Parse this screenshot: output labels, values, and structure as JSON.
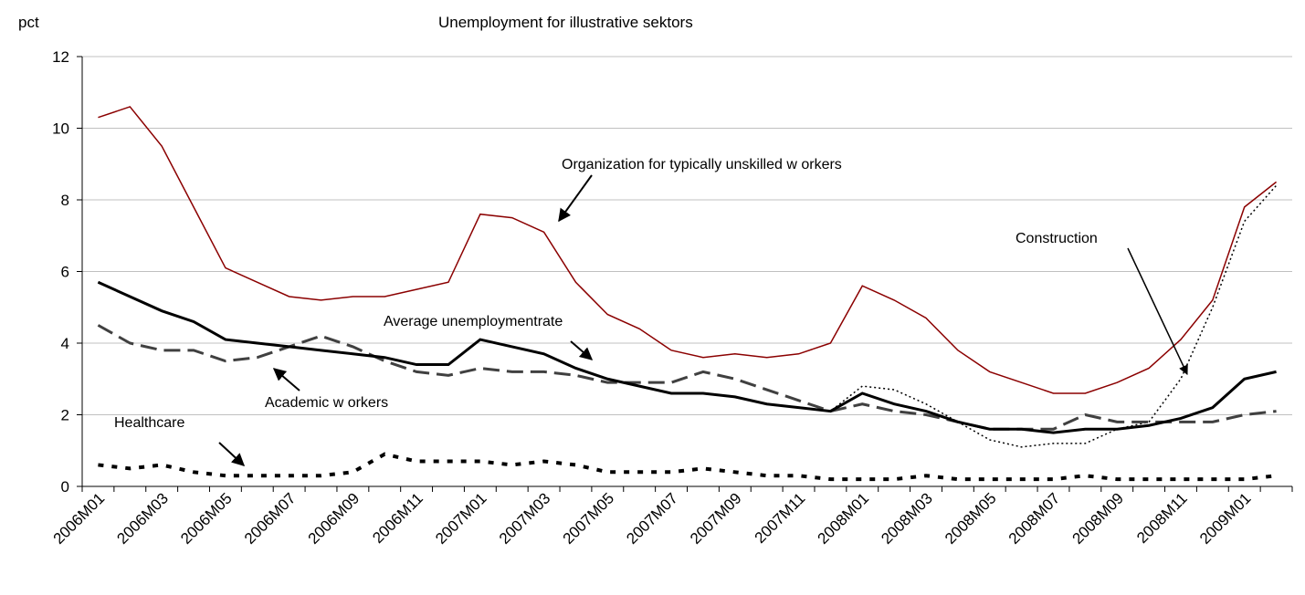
{
  "chart_data": {
    "type": "line",
    "title": "Unemployment for illustrative sektors",
    "y_label": "pct",
    "categories": [
      "2006M01",
      null,
      "2006M03",
      null,
      "2006M05",
      null,
      "2006M07",
      null,
      "2006M09",
      null,
      "2006M11",
      null,
      "2007M01",
      null,
      "2007M03",
      null,
      "2007M05",
      null,
      "2007M07",
      null,
      "2007M09",
      null,
      "2007M11",
      null,
      "2008M01",
      null,
      "2008M03",
      null,
      "2008M05",
      null,
      "2008M07",
      null,
      "2008M09",
      null,
      "2008M11",
      null,
      "2009M01",
      null
    ],
    "series": [
      {
        "name": "Organization for typically unskilled w orkers",
        "color": "#8b0000",
        "line_style": "solid",
        "values": [
          10.3,
          10.6,
          9.5,
          7.8,
          6.1,
          5.7,
          5.3,
          5.2,
          5.3,
          5.3,
          5.5,
          5.7,
          7.6,
          7.5,
          7.1,
          5.7,
          4.8,
          4.4,
          3.8,
          3.6,
          3.7,
          3.6,
          3.7,
          4.0,
          5.6,
          5.2,
          4.7,
          3.8,
          3.2,
          2.9,
          2.6,
          2.6,
          2.9,
          3.3,
          4.1,
          5.2,
          7.8,
          8.5
        ]
      },
      {
        "name": "Construction",
        "color": "#000000",
        "line_style": "dotted",
        "values": [
          5.7,
          5.3,
          4.9,
          4.6,
          4.1,
          4.0,
          3.9,
          3.8,
          3.7,
          3.6,
          3.4,
          3.4,
          4.1,
          3.9,
          3.7,
          3.3,
          3.0,
          2.8,
          2.6,
          2.6,
          2.5,
          2.3,
          2.2,
          2.1,
          2.8,
          2.7,
          2.3,
          1.8,
          1.3,
          1.1,
          1.2,
          1.2,
          1.6,
          1.8,
          3.0,
          5.0,
          7.4,
          8.4
        ]
      },
      {
        "name": "Academic w orkers",
        "color": "#404040",
        "line_style": "dashed",
        "values": [
          4.5,
          4.0,
          3.8,
          3.8,
          3.5,
          3.6,
          3.9,
          4.2,
          3.9,
          3.5,
          3.2,
          3.1,
          3.3,
          3.2,
          3.2,
          3.1,
          2.9,
          2.9,
          2.9,
          3.2,
          3.0,
          2.7,
          2.4,
          2.1,
          2.3,
          2.1,
          2.0,
          1.8,
          1.6,
          1.6,
          1.6,
          2.0,
          1.8,
          1.8,
          1.8,
          1.8,
          2.0,
          2.1
        ]
      },
      {
        "name": "Average unemploymentrate",
        "color": "#000000",
        "line_style": "solid-thick",
        "values": [
          5.7,
          5.3,
          4.9,
          4.6,
          4.1,
          4.0,
          3.9,
          3.8,
          3.7,
          3.6,
          3.4,
          3.4,
          4.1,
          3.9,
          3.7,
          3.3,
          3.0,
          2.8,
          2.6,
          2.6,
          2.5,
          2.3,
          2.2,
          2.1,
          2.6,
          2.3,
          2.1,
          1.8,
          1.6,
          1.6,
          1.5,
          1.6,
          1.6,
          1.7,
          1.9,
          2.2,
          3.0,
          3.2
        ]
      },
      {
        "name": "Healthcare",
        "color": "#000000",
        "line_style": "dotted-thick",
        "values": [
          0.6,
          0.5,
          0.6,
          0.4,
          0.3,
          0.3,
          0.3,
          0.3,
          0.4,
          0.9,
          0.7,
          0.7,
          0.7,
          0.6,
          0.7,
          0.6,
          0.4,
          0.4,
          0.4,
          0.5,
          0.4,
          0.3,
          0.3,
          0.2,
          0.2,
          0.2,
          0.3,
          0.2,
          0.2,
          0.2,
          0.2,
          0.3,
          0.2,
          0.2,
          0.2,
          0.2,
          0.2,
          0.3
        ]
      }
    ],
    "ylim": [
      0,
      12
    ],
    "yticks": [
      0,
      2,
      4,
      6,
      8,
      10,
      12
    ],
    "grid": true
  }
}
